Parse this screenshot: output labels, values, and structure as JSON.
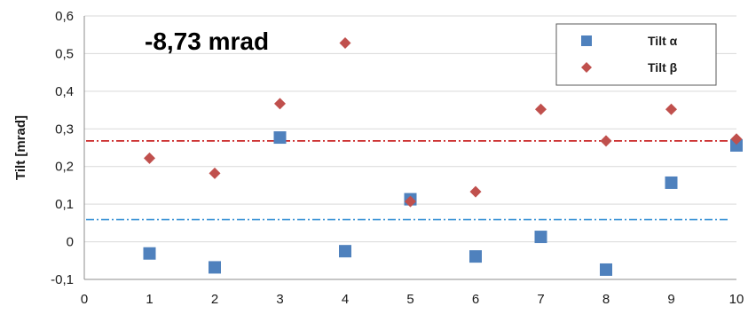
{
  "chart_data": {
    "type": "scatter",
    "title": "",
    "xlabel": "",
    "ylabel": "Tilt [mrad]",
    "xlim": [
      0,
      10
    ],
    "ylim": [
      -0.1,
      0.6
    ],
    "x_ticks": [
      "0",
      "1",
      "2",
      "3",
      "4",
      "5",
      "6",
      "7",
      "8",
      "9",
      "10"
    ],
    "y_ticks": [
      "-0,1",
      "0",
      "0,1",
      "0,2",
      "0,3",
      "0,4",
      "0,5",
      "0,6"
    ],
    "grid": true,
    "legend_position": "top-right",
    "annotation": "-8,73 mrad",
    "series": [
      {
        "name": "Tilt α",
        "marker": "square",
        "color": "#4f81bd",
        "x": [
          1,
          2,
          3,
          4,
          5,
          6,
          7,
          8,
          9,
          10
        ],
        "y": [
          -0.031,
          -0.068,
          0.277,
          -0.025,
          0.113,
          -0.039,
          0.013,
          -0.074,
          0.157,
          0.256
        ]
      },
      {
        "name": "Tilt β",
        "marker": "diamond",
        "color": "#c0504d",
        "x": [
          1,
          2,
          3,
          4,
          5,
          6,
          7,
          8,
          9,
          10
        ],
        "y": [
          0.222,
          0.182,
          0.367,
          0.528,
          0.107,
          0.133,
          0.352,
          0.268,
          0.352,
          0.273
        ]
      }
    ],
    "reference_lines": [
      {
        "y": 0.268,
        "color": "#c00000",
        "style": "dash-dot"
      },
      {
        "y": 0.059,
        "color": "#3a93d6",
        "style": "dash-dot"
      }
    ]
  }
}
